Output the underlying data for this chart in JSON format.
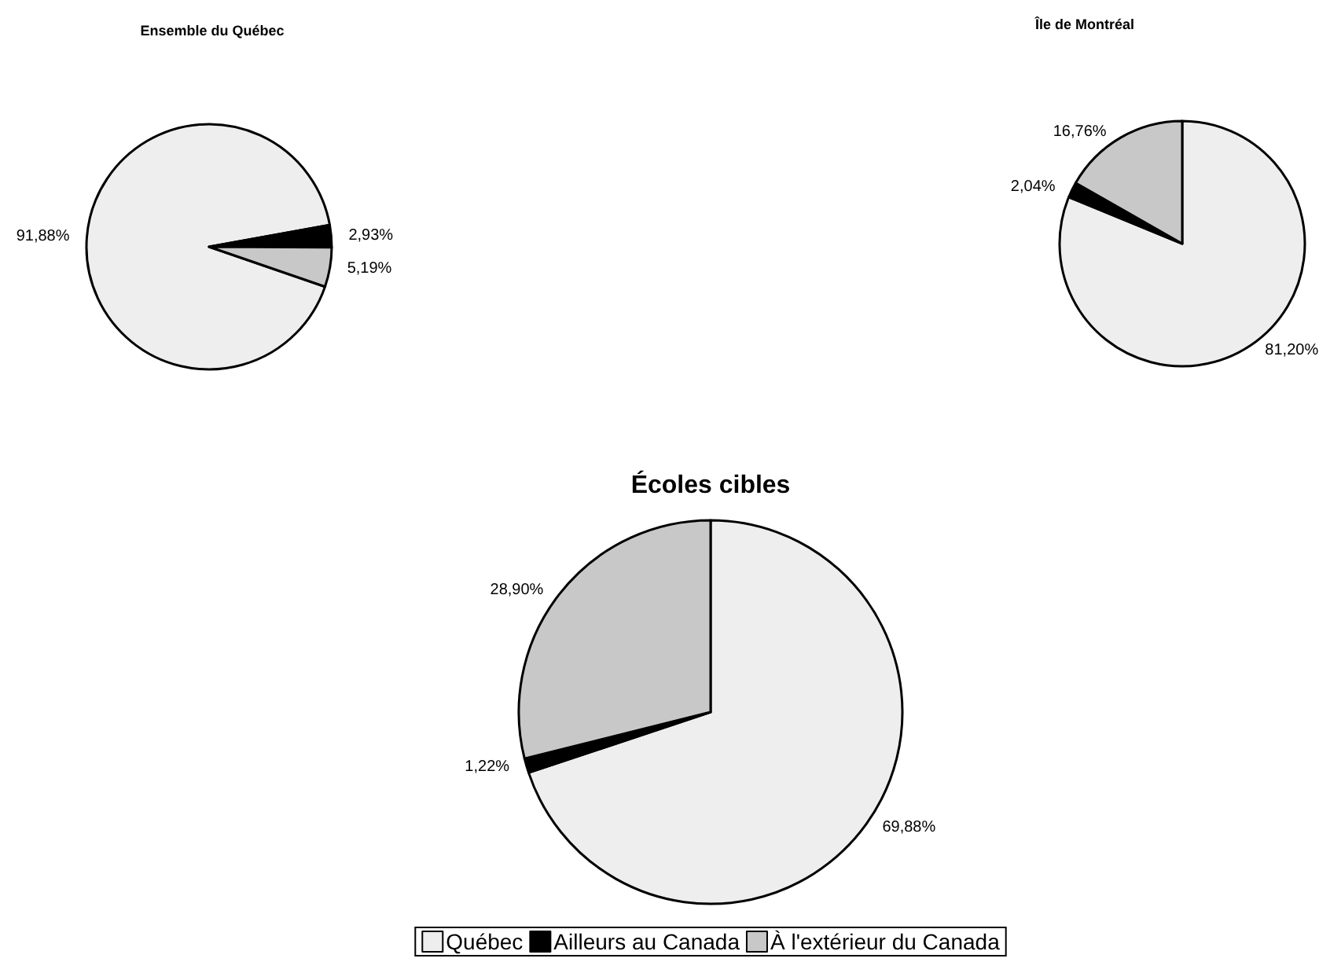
{
  "chart_data": [
    {
      "type": "pie",
      "title": "Ensemble du Québec",
      "values": [
        91.88,
        2.93,
        5.19
      ],
      "value_labels": [
        "91,88%",
        "2,93%",
        "5,19%"
      ],
      "colors": [
        "#eeeeee",
        "#000000",
        "#c8c8c8"
      ],
      "legend": false
    },
    {
      "type": "pie",
      "title": "Île de Montréal",
      "values": [
        81.2,
        2.04,
        16.76
      ],
      "value_labels": [
        "81,20%",
        "2,04%",
        "16,76%"
      ],
      "colors": [
        "#eeeeee",
        "#000000",
        "#c8c8c8"
      ],
      "legend": false
    },
    {
      "type": "pie",
      "title": "Écoles cibles",
      "categories": [
        "Québec",
        "Ailleurs au Canada",
        "À l'extérieur du Canada"
      ],
      "values": [
        69.88,
        1.22,
        28.9
      ],
      "value_labels": [
        "69,88%",
        "1,22%",
        "28,90%"
      ],
      "colors": [
        "#eeeeee",
        "#000000",
        "#c8c8c8"
      ],
      "legend": "bottom"
    }
  ]
}
